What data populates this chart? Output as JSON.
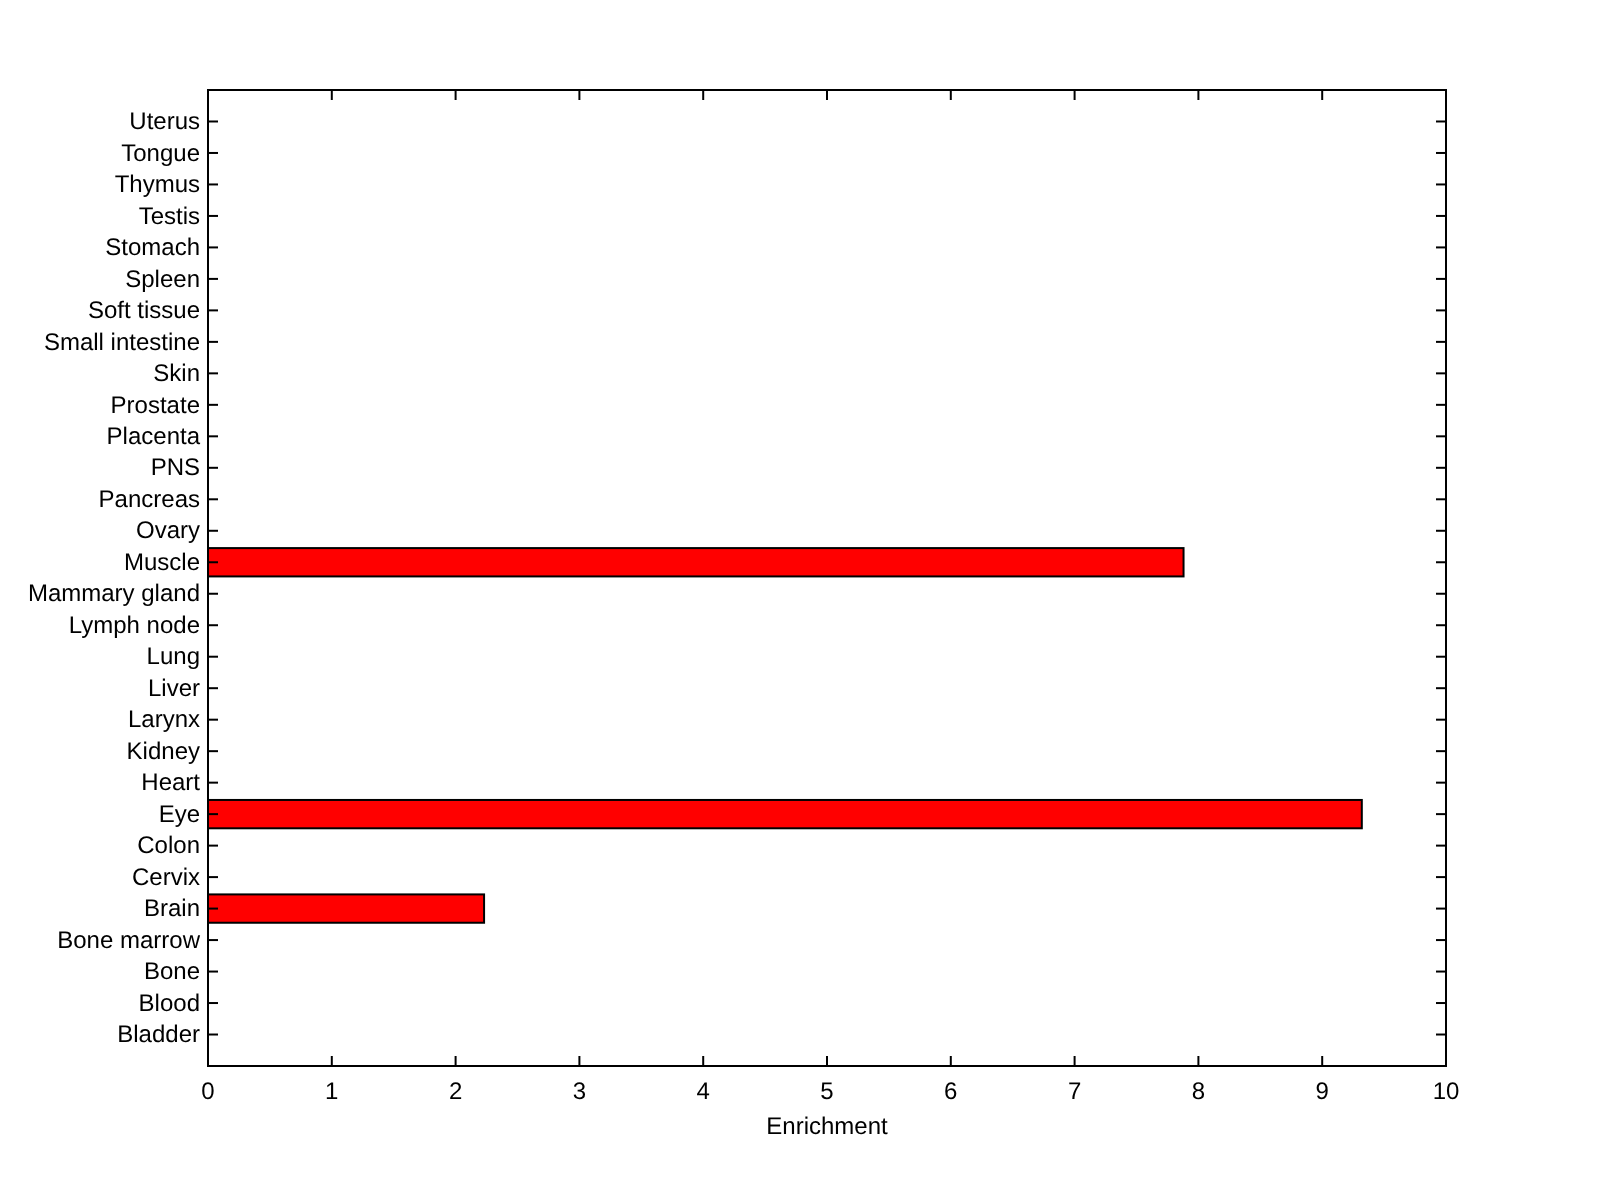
{
  "chart_data": {
    "type": "bar",
    "orientation": "horizontal",
    "xlabel": "Enrichment",
    "categories": [
      "Uterus",
      "Tongue",
      "Thymus",
      "Testis",
      "Stomach",
      "Spleen",
      "Soft tissue",
      "Small intestine",
      "Skin",
      "Prostate",
      "Placenta",
      "PNS",
      "Pancreas",
      "Ovary",
      "Muscle",
      "Mammary gland",
      "Lymph node",
      "Lung",
      "Liver",
      "Larynx",
      "Kidney",
      "Heart",
      "Eye",
      "Colon",
      "Cervix",
      "Brain",
      "Bone marrow",
      "Bone",
      "Blood",
      "Bladder"
    ],
    "values": [
      0,
      0,
      0,
      0,
      0,
      0,
      0,
      0,
      0,
      0,
      0,
      0,
      0,
      0,
      7.88,
      0,
      0,
      0,
      0,
      0,
      0,
      0,
      9.32,
      0,
      0,
      2.23,
      0,
      0,
      0,
      0
    ],
    "color": "#ff0000",
    "xlim": [
      0,
      10
    ],
    "xticks": [
      0,
      1,
      2,
      3,
      4,
      5,
      6,
      7,
      8,
      9,
      10
    ],
    "grid": false
  }
}
